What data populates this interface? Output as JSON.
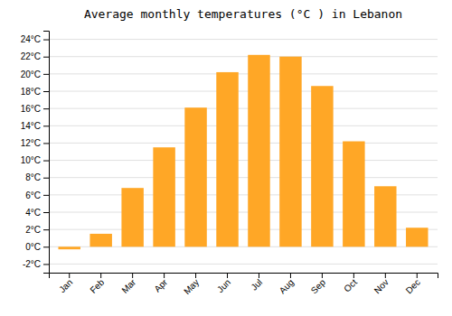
{
  "chart_data": {
    "type": "bar",
    "title": "Average monthly temperatures (°C ) in Lebanon",
    "categories": [
      "Jan",
      "Feb",
      "Mar",
      "Apr",
      "May",
      "Jun",
      "Jul",
      "Aug",
      "Sep",
      "Oct",
      "Nov",
      "Dec"
    ],
    "values": [
      -0.3,
      1.5,
      6.8,
      11.5,
      16.1,
      20.2,
      22.2,
      22.0,
      18.6,
      12.2,
      7.0,
      2.2
    ],
    "color": "#FFA726",
    "ylim": [
      -3,
      25
    ],
    "yticks": [
      {
        "value": -2,
        "label": "-2°C"
      },
      {
        "value": 0,
        "label": "0°C"
      },
      {
        "value": 2,
        "label": "2°C"
      },
      {
        "value": 4,
        "label": "4°C"
      },
      {
        "value": 6,
        "label": "6°C"
      },
      {
        "value": 8,
        "label": "8°C"
      },
      {
        "value": 10,
        "label": "10°C"
      },
      {
        "value": 12,
        "label": "12°C"
      },
      {
        "value": 14,
        "label": "14°C"
      },
      {
        "value": 16,
        "label": "16°C"
      },
      {
        "value": 18,
        "label": "18°C"
      },
      {
        "value": 20,
        "label": "20°C"
      },
      {
        "value": 22,
        "label": "22°C"
      },
      {
        "value": 24,
        "label": "24°C"
      }
    ],
    "grid": true
  }
}
